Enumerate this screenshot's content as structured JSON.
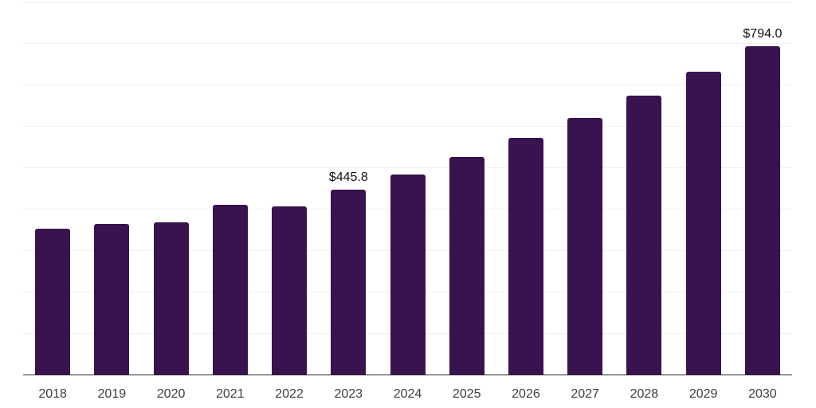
{
  "chart_data": {
    "type": "bar",
    "title": "",
    "xlabel": "",
    "ylabel": "",
    "categories": [
      "2018",
      "2019",
      "2020",
      "2021",
      "2022",
      "2023",
      "2024",
      "2025",
      "2026",
      "2027",
      "2028",
      "2029",
      "2030"
    ],
    "values": [
      351.4,
      363.0,
      366.8,
      410.9,
      407.0,
      445.8,
      484.1,
      525.8,
      572.0,
      620.1,
      673.4,
      731.3,
      794.0
    ],
    "data_labels": [
      {
        "category": "2023",
        "text": "$445.8"
      },
      {
        "category": "2030",
        "text": "$794.0"
      }
    ],
    "ylim": [
      0,
      900
    ],
    "grid_step": 100,
    "grid": "horizontal-only",
    "legend": "none",
    "y_axis_labels_visible": false,
    "colors": {
      "bar": "#38134F",
      "grid_line": "#f0f0f0",
      "axis_line": "#262626",
      "data_label": "#111111",
      "tick_label": "#3d3d3d",
      "background": "#ffffff"
    }
  }
}
